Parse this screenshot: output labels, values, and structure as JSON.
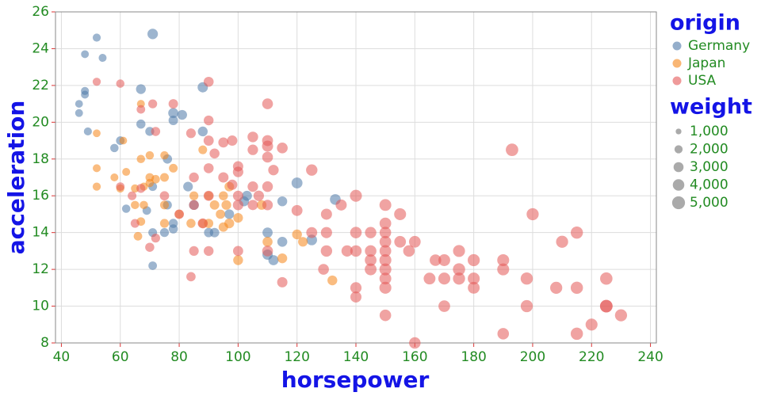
{
  "chart_data": {
    "type": "scatter",
    "x_label": "horsepower",
    "y_label": "acceleration",
    "xlim": [
      38,
      242
    ],
    "ylim": [
      8,
      26
    ],
    "xticks": [
      40,
      60,
      80,
      100,
      120,
      140,
      160,
      180,
      200,
      220,
      240
    ],
    "yticks": [
      8,
      10,
      12,
      14,
      16,
      18,
      20,
      22,
      24,
      26
    ],
    "grid": true,
    "legend_position": "right",
    "legend_title": "origin",
    "size_legend": {
      "title": "weight",
      "values": [
        {
          "value": 1000,
          "label": "1,000"
        },
        {
          "value": 2000,
          "label": "2,000"
        },
        {
          "value": 3000,
          "label": "3,000"
        },
        {
          "value": 4000,
          "label": "4,000"
        },
        {
          "value": 5000,
          "label": "5,000"
        }
      ]
    },
    "series": [
      {
        "name": "Germany",
        "color": "#4c78a8",
        "x": [
          46,
          46,
          48,
          48,
          48,
          52,
          54,
          49,
          58,
          60,
          67,
          71,
          67,
          70,
          78,
          81,
          78,
          88,
          88,
          76,
          71,
          62,
          69,
          76,
          78,
          71,
          75,
          78,
          71,
          83,
          90,
          92,
          85,
          102,
          110,
          110,
          112,
          115,
          115,
          120,
          125,
          133,
          103,
          97
        ],
        "values": [
          21,
          20.5,
          21.5,
          21.7,
          23.7,
          24.6,
          23.5,
          19.5,
          18.6,
          19,
          21.8,
          24.8,
          19.9,
          19.5,
          20.1,
          20.4,
          20.5,
          19.5,
          21.9,
          18,
          16.5,
          15.3,
          15.2,
          15.5,
          14.5,
          14,
          14,
          14.2,
          12.2,
          16.5,
          14,
          14,
          15.5,
          15.7,
          14,
          12.8,
          12.5,
          15.7,
          13.5,
          16.7,
          13.6,
          15.8,
          16,
          15
        ],
        "sizes": [
          1800,
          1850,
          1900,
          1950,
          1835,
          1950,
          1900,
          1950,
          2100,
          2200,
          2900,
          3300,
          2500,
          2400,
          2700,
          2900,
          3100,
          2900,
          3200,
          2600,
          2300,
          2100,
          2200,
          2400,
          2500,
          2300,
          2400,
          2500,
          2200,
          2800,
          2600,
          2700,
          2900,
          3000,
          3100,
          3200,
          3100,
          2900,
          3000,
          3600,
          3400,
          3500,
          3000,
          2800
        ]
      },
      {
        "name": "Japan",
        "color": "#f58518",
        "x": [
          52,
          52,
          52,
          58,
          60,
          61,
          65,
          65,
          67,
          67,
          68,
          68,
          70,
          70,
          72,
          75,
          75,
          75,
          75,
          78,
          80,
          84,
          85,
          88,
          90,
          90,
          92,
          94,
          95,
          96,
          97,
          97,
          100,
          100,
          108,
          110,
          115,
          120,
          122,
          132,
          67,
          70,
          62,
          66,
          88,
          95
        ],
        "values": [
          19.4,
          17.5,
          16.5,
          17,
          16.4,
          19,
          16.4,
          15.5,
          21,
          18,
          16.5,
          15.5,
          18.2,
          17,
          16.9,
          18.2,
          17,
          15.5,
          14.5,
          17.5,
          15,
          14.5,
          16,
          14.5,
          16,
          14.5,
          15.5,
          15,
          14.3,
          15.5,
          16.5,
          14.5,
          14.8,
          12.5,
          15.5,
          13.5,
          12.6,
          13.9,
          13.5,
          11.4,
          14.6,
          16.7,
          17.3,
          13.8,
          18.5,
          16
        ],
        "sizes": [
          1800,
          1900,
          2000,
          1900,
          2000,
          1800,
          2000,
          2100,
          1900,
          2100,
          2000,
          2100,
          2100,
          2200,
          2200,
          2100,
          2300,
          2300,
          2400,
          2300,
          2400,
          2500,
          2400,
          2600,
          2500,
          2600,
          2700,
          2600,
          2700,
          2800,
          2700,
          2900,
          2800,
          2900,
          2800,
          3000,
          2900,
          2900,
          2800,
          2900,
          2200,
          2100,
          1900,
          2200,
          2300,
          2500
        ]
      },
      {
        "name": "USA",
        "color": "#e45756",
        "x": [
          52,
          60,
          67,
          71,
          72,
          78,
          84,
          90,
          90,
          90,
          92,
          95,
          98,
          100,
          100,
          105,
          105,
          110,
          110,
          110,
          110,
          112,
          115,
          125,
          193,
          200,
          215,
          210,
          230,
          225,
          225,
          215,
          220,
          215,
          208,
          198,
          198,
          190,
          190,
          190,
          180,
          180,
          180,
          175,
          175,
          175,
          170,
          170,
          170,
          167,
          165,
          160,
          160,
          158,
          155,
          155,
          150,
          150,
          150,
          150,
          150,
          150,
          150,
          150,
          150,
          150,
          145,
          145,
          145,
          145,
          140,
          140,
          140,
          140,
          140,
          137,
          135,
          130,
          130,
          130,
          129,
          125,
          120,
          115,
          110,
          110,
          110,
          107,
          105,
          105,
          100,
          100,
          100,
          98,
          95,
          90,
          90,
          90,
          88,
          85,
          85,
          85,
          84,
          80,
          75,
          72,
          70,
          67,
          65,
          64,
          60,
          225
        ],
        "values": [
          22.2,
          22.1,
          20.7,
          21,
          19.5,
          21,
          19.4,
          22.2,
          20.1,
          19,
          18.3,
          18.9,
          19,
          17.3,
          17.6,
          19.2,
          18.5,
          19,
          18.1,
          21,
          18.7,
          17.4,
          18.6,
          17.4,
          18.5,
          15,
          14,
          13.5,
          9.5,
          10,
          11.5,
          11,
          9,
          8.5,
          11,
          10,
          11.5,
          12.5,
          12,
          8.5,
          12.5,
          11.5,
          11,
          12,
          11.5,
          13,
          12.5,
          11.5,
          10,
          12.5,
          11.5,
          8,
          13.5,
          13,
          15,
          13.5,
          15.5,
          14.5,
          14,
          13.5,
          13,
          12.5,
          12,
          11.5,
          11,
          9.5,
          14,
          13,
          12.5,
          12,
          16,
          14,
          13,
          11,
          10.5,
          13,
          15.5,
          15,
          14,
          13,
          12,
          14,
          15.2,
          11.3,
          16.5,
          15.5,
          13,
          16,
          15.5,
          16.5,
          16,
          15.5,
          13,
          16.6,
          17,
          17.5,
          16,
          13,
          14.5,
          17,
          15.5,
          13,
          11.6,
          15,
          16,
          13.7,
          13.2,
          16.4,
          14.5,
          16,
          16.5,
          10
        ],
        "sizes": [
          2000,
          2100,
          2200,
          2400,
          2500,
          2700,
          2800,
          3000,
          2900,
          3100,
          3000,
          3100,
          3200,
          3300,
          3200,
          3400,
          3300,
          3600,
          3500,
          3500,
          3700,
          3300,
          3500,
          3900,
          4700,
          4400,
          4500,
          4400,
          4400,
          4700,
          4600,
          4500,
          4300,
          4500,
          4400,
          4400,
          4500,
          4300,
          4300,
          4000,
          4400,
          4300,
          4200,
          4500,
          4400,
          4300,
          4200,
          4300,
          4100,
          4000,
          4200,
          4000,
          4100,
          4000,
          4300,
          4100,
          4200,
          4100,
          4000,
          4100,
          4100,
          4300,
          4300,
          4200,
          4300,
          4000,
          3900,
          4000,
          4100,
          4200,
          4300,
          4000,
          3900,
          3800,
          3700,
          3800,
          3700,
          3700,
          3800,
          3900,
          3500,
          3600,
          3600,
          3200,
          3400,
          3300,
          3500,
          3300,
          3200,
          3300,
          3200,
          3300,
          3100,
          3200,
          3200,
          3000,
          3100,
          2900,
          3000,
          2900,
          2900,
          2800,
          2600,
          2700,
          2600,
          2400,
          2500,
          2400,
          2300,
          2300,
          2200,
          4800
        ]
      }
    ]
  }
}
